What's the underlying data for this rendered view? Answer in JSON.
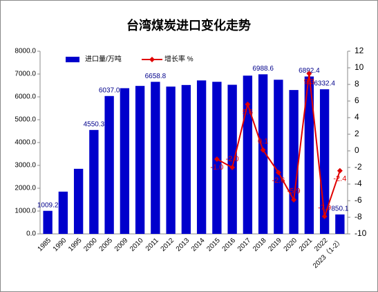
{
  "chart_data": {
    "type": "bar-line",
    "title": "台湾煤炭进口变化走势",
    "categories": [
      "1985",
      "1990",
      "1995",
      "2000",
      "2005",
      "2009",
      "2010",
      "2011",
      "2012",
      "2013",
      "2014",
      "2015",
      "2016",
      "2017",
      "2018",
      "2019",
      "2020",
      "2021",
      "2022",
      "2023（1-2）"
    ],
    "series": [
      {
        "name": "进口量/万吨",
        "type": "bar",
        "color": "#0000cc",
        "values": [
          1009.2,
          1850,
          2850,
          4550.3,
          6037.0,
          6380,
          6480,
          6658.8,
          6450,
          6520,
          6720,
          6660,
          6530,
          6930,
          6988.6,
          6750,
          6300,
          6892.4,
          6332.4,
          850.1
        ],
        "value_labels": [
          "1009.2",
          null,
          null,
          "4550.3",
          "6037.0",
          null,
          null,
          "6658.8",
          null,
          null,
          null,
          null,
          null,
          null,
          "6988.6",
          null,
          null,
          "6892.4",
          "6332.4",
          "850.1"
        ]
      },
      {
        "name": "增长率 %",
        "type": "line",
        "axis": "y2",
        "color": "#e00000",
        "values": [
          null,
          null,
          null,
          null,
          null,
          null,
          null,
          null,
          null,
          null,
          null,
          -1.0,
          -2.0,
          5.6,
          0.1,
          -2.6,
          -5.9,
          9.3,
          -7.9,
          -2.4
        ],
        "value_labels": [
          null,
          null,
          null,
          null,
          null,
          null,
          null,
          null,
          null,
          null,
          null,
          "-1.0",
          "-2.0",
          "5.6",
          "0.1",
          "-2.6",
          "-5.9",
          "9.3",
          "-7.9",
          "-2.4"
        ]
      }
    ],
    "ylim": [
      0,
      8000
    ],
    "yticks": [
      {
        "value": 0,
        "label": "0.0"
      },
      {
        "value": 1000,
        "label": "1000.0"
      },
      {
        "value": 2000,
        "label": "2000.0"
      },
      {
        "value": 3000,
        "label": "3000.0"
      },
      {
        "value": 4000,
        "label": "4000.0"
      },
      {
        "value": 5000,
        "label": "5000.0"
      },
      {
        "value": 6000,
        "label": "6000.0"
      },
      {
        "value": 7000,
        "label": "7000.0"
      },
      {
        "value": 8000,
        "label": "8000.0"
      }
    ],
    "y2lim": [
      -10,
      12
    ],
    "y2ticks": [
      -10,
      -8,
      -6,
      -4,
      -2,
      0,
      2,
      4,
      6,
      8,
      10,
      12
    ],
    "legend": "top-left"
  }
}
